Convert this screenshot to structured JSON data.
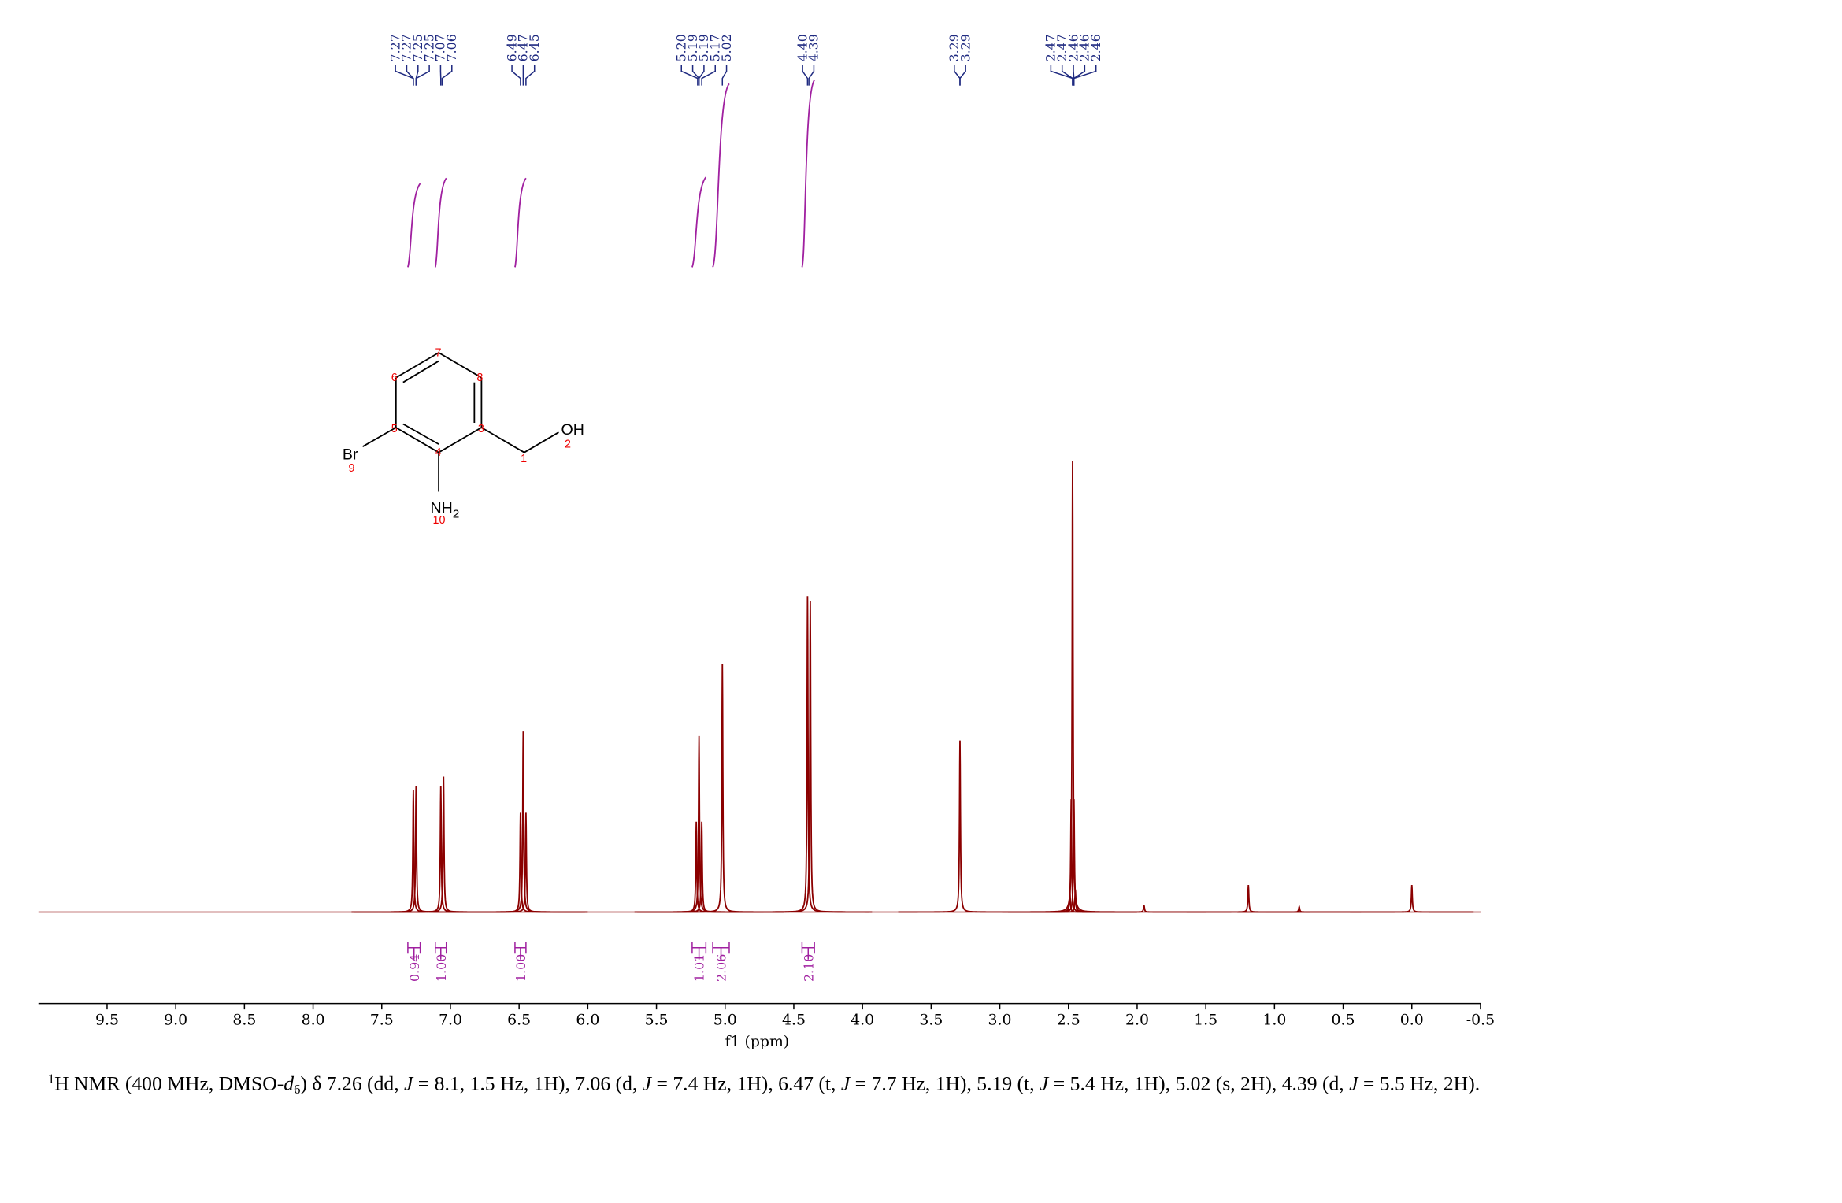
{
  "chart_data": {
    "type": "nmr",
    "xlabel": "f1 (ppm)",
    "xlim": [
      10.0,
      -0.5
    ],
    "xticks": [
      9.5,
      {
        "value": 9,
        "label": "9.0"
      },
      8.5,
      {
        "value": 8,
        "label": "8.0"
      },
      7.5,
      {
        "value": 7,
        "label": "7.0"
      },
      6.5,
      {
        "value": 6,
        "label": "6.0"
      },
      5.5,
      {
        "value": 5,
        "label": "5.0"
      },
      4.5,
      {
        "value": 4,
        "label": "4.0"
      },
      3.5,
      {
        "value": 3,
        "label": "3.0"
      },
      2.5,
      {
        "value": 2,
        "label": "2.0"
      },
      1.5,
      {
        "value": 1,
        "label": "1.0"
      },
      0.5,
      {
        "value": 0,
        "label": "0.0"
      },
      -0.5
    ],
    "ylim": [
      0,
      100
    ],
    "color": "#8b0000",
    "integral_color": "#a020a0",
    "label_color": "#1f2a80",
    "peaks": {
      "x": [
        7.27,
        7.25,
        7.07,
        7.05,
        6.49,
        6.47,
        6.45,
        5.21,
        5.19,
        5.17,
        5.02,
        4.4,
        4.38,
        3.29,
        2.49,
        2.48,
        2.47,
        2.46,
        2.45,
        1.95,
        1.19,
        0.82,
        0
      ],
      "values": [
        27,
        28,
        28,
        30,
        22,
        40,
        22,
        20,
        39,
        20,
        55,
        70,
        69,
        38,
        5,
        25,
        100,
        25,
        5,
        1.5,
        6,
        1.2,
        6
      ]
    },
    "peak_labels": {
      "values": [
        7.27,
        7.27,
        7.25,
        7.25,
        7.07,
        7.06,
        6.49,
        6.47,
        6.45,
        5.2,
        5.19,
        5.19,
        5.17,
        5.02,
        4.4,
        4.39,
        3.29,
        3.29,
        2.47,
        2.47,
        2.46,
        2.46,
        2.46
      ],
      "value_labels": [
        "7.27",
        "7.27",
        "7.25",
        "7.25",
        "7.07",
        "7.06",
        "6.49",
        "6.47",
        "6.45",
        "5.20",
        "5.19",
        "5.19",
        "5.17",
        "5.02",
        "4.40",
        "4.39",
        "3.29",
        "3.29",
        "2.47",
        "2.47",
        "2.46",
        "2.46",
        "2.46"
      ]
    },
    "integrals": {
      "from": [
        7.31,
        7.11,
        6.53,
        5.24,
        5.09,
        4.44
      ],
      "to": [
        7.22,
        7.03,
        6.45,
        5.14,
        4.97,
        4.35
      ],
      "values": [
        0.94,
        1,
        1,
        1.01,
        2.06,
        2.1
      ],
      "value_labels": [
        "0.94",
        "1.00",
        "1.00",
        "1.01",
        "2.06",
        "2.10"
      ]
    }
  },
  "molecule": {
    "groups": [
      "Br",
      "OH",
      "NH"
    ],
    "subscript": 2,
    "atom_numbers": [
      1,
      2,
      3,
      4,
      5,
      6,
      7,
      8,
      9,
      10
    ]
  },
  "caption": [
    "1",
    "H NMR (400 MHz, DMSO-",
    "d",
    "6",
    ") δ 7.26 (dd, ",
    "J",
    " = 8.1, 1.5 Hz, 1H), 7.06 (d, ",
    "J",
    " = 7.4 Hz, 1H), 6.47 (t, ",
    "J",
    " = 7.7 Hz, 1H), 5.19 (t, ",
    "J",
    " = 5.4 Hz, 1H), 5.02 (s, 2H), 4.39 (d, ",
    "J",
    " = 5.5 Hz, 2H)."
  ]
}
